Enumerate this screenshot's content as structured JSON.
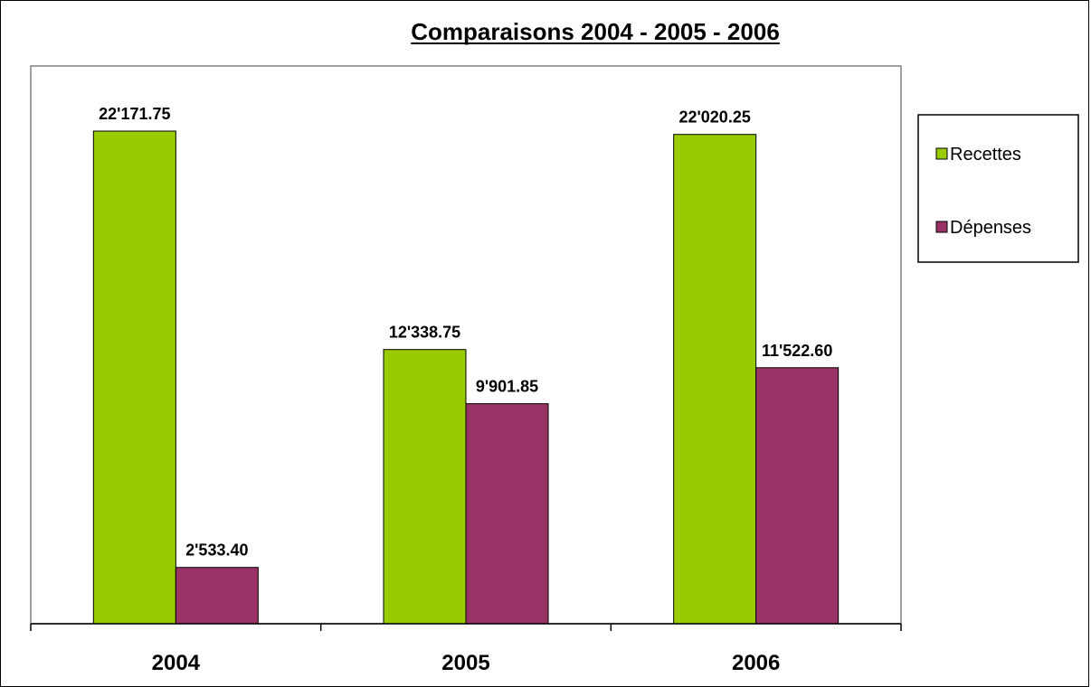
{
  "chart_data": {
    "type": "bar",
    "title": "Comparaisons 2004 - 2005 - 2006",
    "categories": [
      "2004",
      "2005",
      "2006"
    ],
    "series": [
      {
        "name": "Recettes",
        "color": "#99cc00",
        "values": [
          22171.75,
          12338.75,
          22020.25
        ],
        "labels": [
          "22'171.75",
          "12'338.75",
          "22'020.25"
        ]
      },
      {
        "name": "Dépenses",
        "color": "#993366",
        "values": [
          2533.4,
          9901.85,
          11522.6
        ],
        "labels": [
          "2'533.40",
          "9'901.85",
          "11'522.60"
        ]
      }
    ],
    "xlabel": "",
    "ylabel": "",
    "ylim": [
      0,
      25000
    ],
    "grid": false,
    "legend_position": "right",
    "plot_background": "#ffffff"
  }
}
